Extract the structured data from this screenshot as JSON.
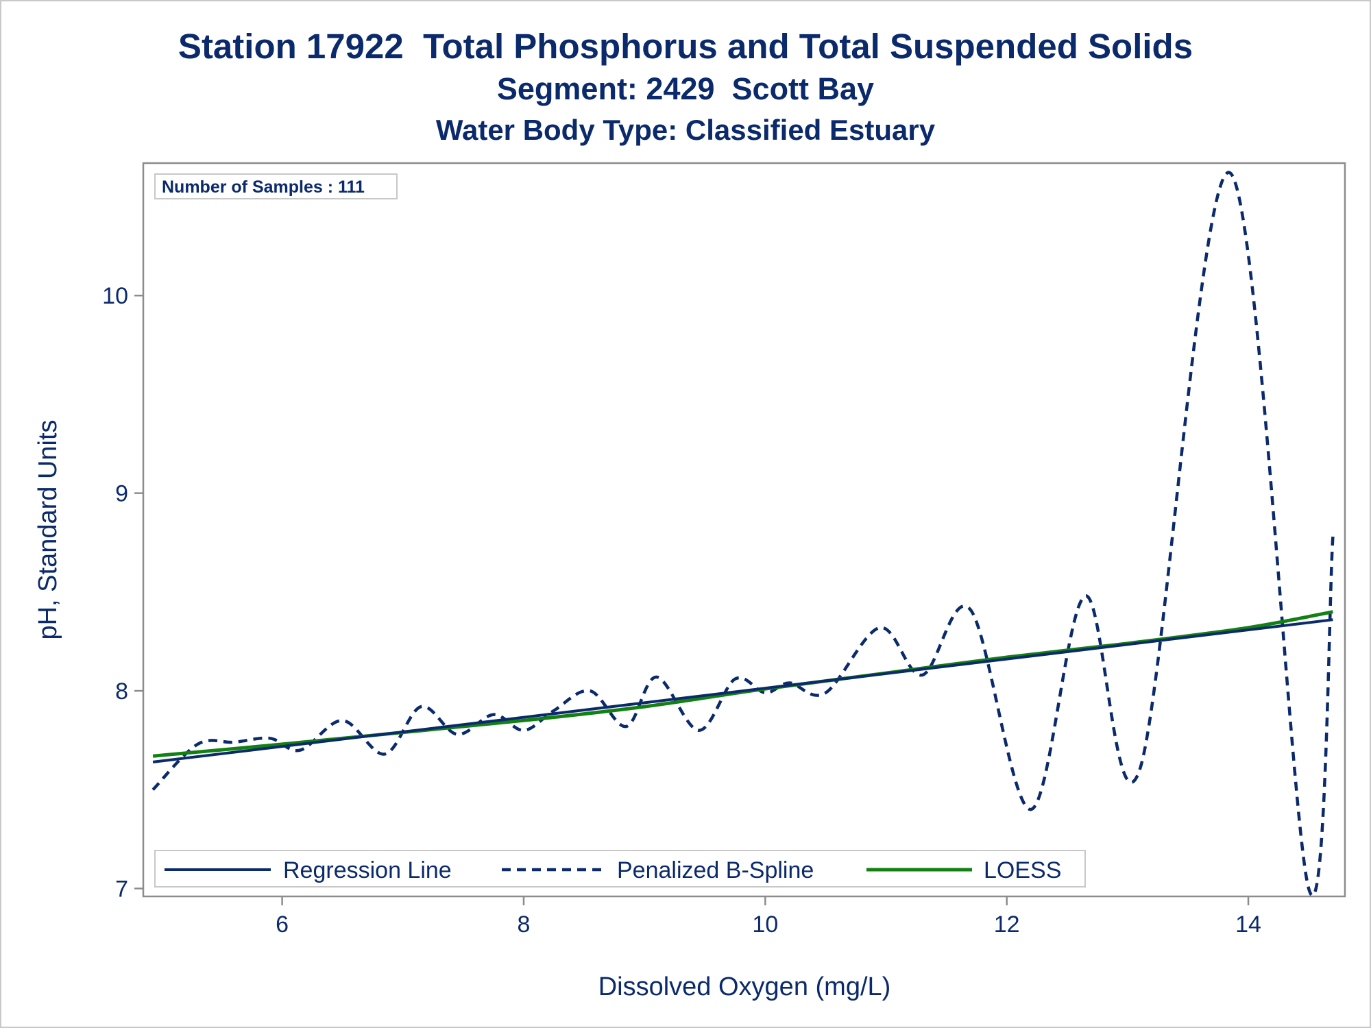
{
  "titles": {
    "line1": "Station 17922  Total Phosphorus and Total Suspended Solids",
    "line2": "Segment: 2429  Scott Bay",
    "line3": "Water Body Type: Classified Estuary"
  },
  "inset": {
    "text": "Number of Samples : 111"
  },
  "colors": {
    "text": "#0b2a6b",
    "regression": "#0b2a6b",
    "spline": "#0b2a6b",
    "loess": "#138013",
    "axis": "#8c8c8c"
  },
  "chart_data": {
    "type": "line",
    "title": "Station 17922  Total Phosphorus and Total Suspended Solids",
    "xlabel": "Dissolved Oxygen (mg/L)",
    "ylabel": "pH, Standard Units",
    "xlim": [
      4.85,
      14.8
    ],
    "ylim": [
      6.96,
      10.67
    ],
    "x_ticks": [
      6,
      8,
      10,
      12,
      14
    ],
    "y_ticks": [
      7,
      8,
      9,
      10
    ],
    "x_tick_labels": [
      "6",
      "8",
      "10",
      "12",
      "14"
    ],
    "y_tick_labels": [
      "7",
      "8",
      "9",
      "10"
    ],
    "grid": false,
    "legend_position": "bottom-inside",
    "series": [
      {
        "name": "Regression Line",
        "style": "solid",
        "color": "#0b2a6b",
        "x": [
          4.93,
          14.7
        ],
        "y": [
          7.64,
          8.36
        ]
      },
      {
        "name": "Penalized B-Spline",
        "style": "dashed",
        "color": "#0b2a6b",
        "x": [
          4.93,
          5.3,
          5.6,
          5.9,
          6.15,
          6.5,
          6.85,
          7.15,
          7.45,
          7.75,
          8.0,
          8.25,
          8.55,
          8.85,
          9.1,
          9.45,
          9.75,
          10.0,
          10.2,
          10.5,
          10.95,
          11.3,
          11.7,
          12.2,
          12.65,
          13.1,
          13.85,
          14.5,
          14.7
        ],
        "y": [
          7.5,
          7.73,
          7.74,
          7.76,
          7.7,
          7.85,
          7.68,
          7.92,
          7.78,
          7.88,
          7.8,
          7.9,
          8.0,
          7.82,
          8.07,
          7.8,
          8.06,
          7.99,
          8.04,
          7.99,
          8.32,
          8.08,
          8.41,
          7.4,
          8.48,
          7.6,
          10.62,
          7.0,
          8.78
        ]
      },
      {
        "name": "LOESS",
        "style": "solid",
        "color": "#138013",
        "x": [
          4.93,
          6.0,
          7.0,
          8.0,
          9.0,
          10.0,
          11.0,
          12.0,
          13.0,
          14.0,
          14.7
        ],
        "y": [
          7.67,
          7.73,
          7.79,
          7.85,
          7.92,
          8.01,
          8.09,
          8.17,
          8.24,
          8.32,
          8.4
        ]
      }
    ]
  }
}
